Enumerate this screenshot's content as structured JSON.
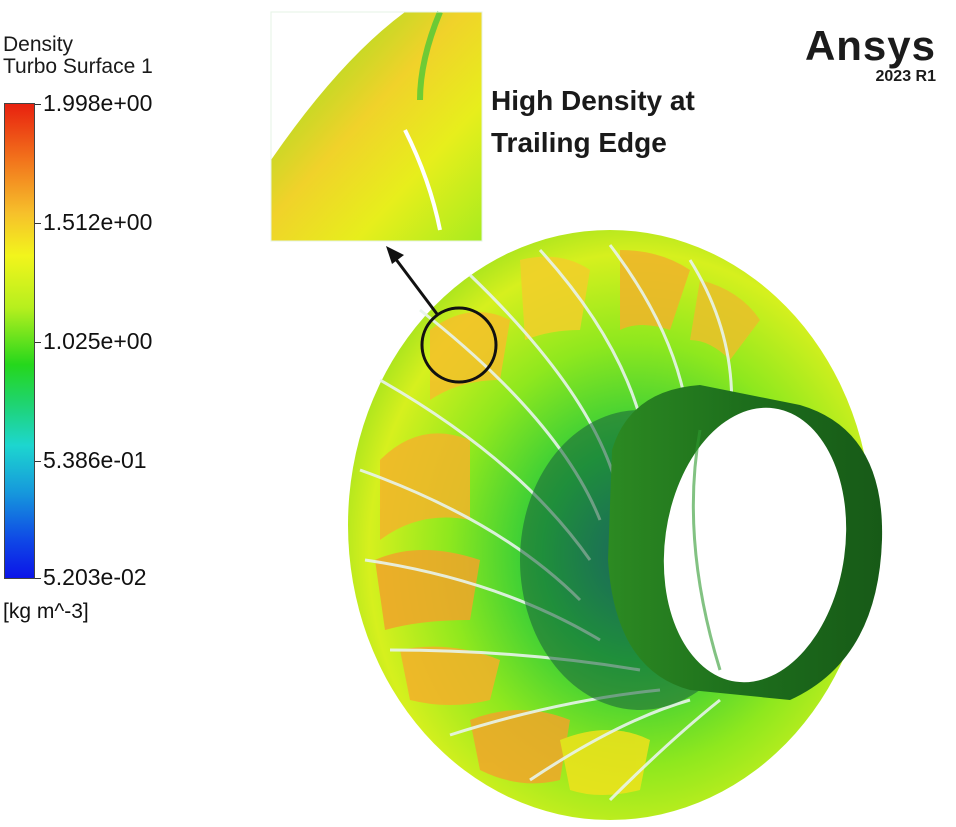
{
  "legend": {
    "title": "Density",
    "subtitle": "Turbo Surface 1",
    "ticks": [
      "1.998e+00",
      "1.512e+00",
      "1.025e+00",
      "5.386e-01",
      "5.203e-02"
    ],
    "units": "[kg m^-3]"
  },
  "brand": {
    "name": "Ansys",
    "version": "2023 R1"
  },
  "callout": {
    "line1": "High Density at",
    "line2": "Trailing Edge"
  },
  "colors": {
    "high": "#e8210f",
    "mid_high": "#f2f51c",
    "mid": "#25d71c",
    "mid_low": "#1dd6cf",
    "low": "#0b14e8",
    "shroud": "#1d6e1c"
  }
}
